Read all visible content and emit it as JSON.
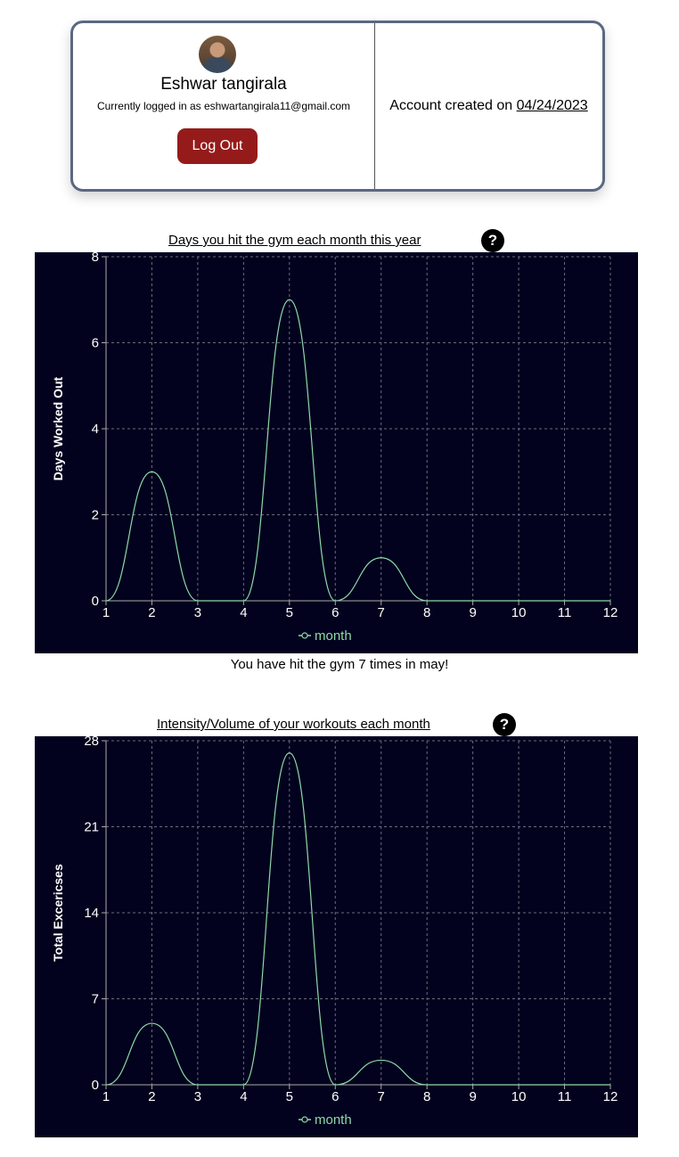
{
  "profile": {
    "name": "Eshwar tangirala",
    "logged_in_text": "Currently logged in as eshwartangirala11@gmail.com",
    "logout_label": "Log Out",
    "account_created_prefix": "Account created on ",
    "account_created_date": "04/24/2023",
    "border_color": "#5b6882",
    "logout_color": "#951b1b"
  },
  "help_glyph": "?",
  "caption": "You have hit the gym 7 times in may!",
  "colors": {
    "chart_background": "#02021e",
    "line": "#8fd9a8",
    "grid": "#6b6b7e",
    "axis_text": "#ffffff"
  },
  "chart_data": [
    {
      "type": "line",
      "title": "Days you hit the gym each month this year",
      "ylabel": "Days Worked Out",
      "xlabel": "",
      "x": [
        1,
        2,
        3,
        4,
        5,
        6,
        7,
        8,
        9,
        10,
        11,
        12
      ],
      "ylim": [
        0,
        8
      ],
      "yticks": [
        0,
        2,
        4,
        6,
        8
      ],
      "grid": true,
      "legend_position": "bottom",
      "series": [
        {
          "name": "month",
          "values": [
            0,
            3,
            0,
            0,
            7,
            0,
            1,
            0,
            0,
            0,
            0,
            0
          ]
        }
      ]
    },
    {
      "type": "line",
      "title": "Intensity/Volume of your workouts each month",
      "ylabel": "Total Excericses",
      "xlabel": "",
      "x": [
        1,
        2,
        3,
        4,
        5,
        6,
        7,
        8,
        9,
        10,
        11,
        12
      ],
      "ylim": [
        0,
        28
      ],
      "yticks": [
        0,
        7,
        14,
        21,
        28
      ],
      "grid": true,
      "legend_position": "bottom",
      "series": [
        {
          "name": "month",
          "values": [
            0,
            5,
            0,
            0,
            27,
            0,
            2,
            0,
            0,
            0,
            0,
            0
          ]
        }
      ]
    }
  ]
}
